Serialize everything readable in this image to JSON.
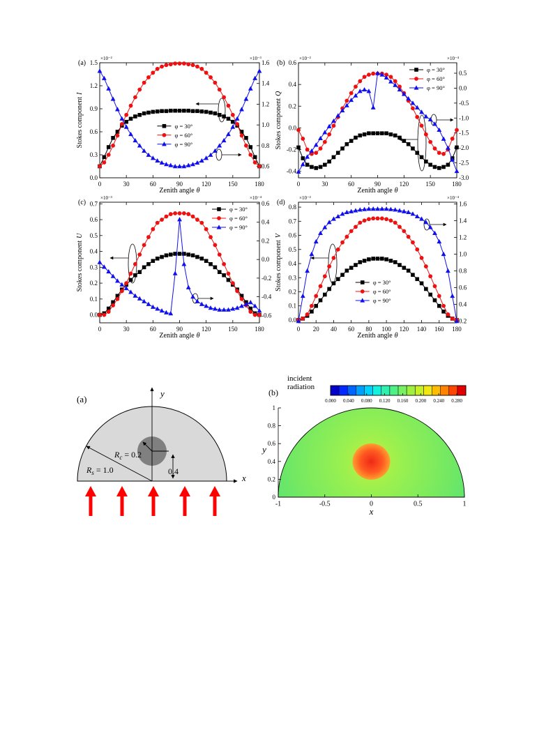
{
  "chart_data": [
    {
      "type": "line",
      "panel_label": "(a)",
      "y_label": {
        "text": "Stokes component",
        "symbol": "I"
      },
      "x_label": {
        "text": "Zenith angle",
        "symbol": "θ"
      },
      "y_multiplier": "×10⁻²",
      "y2_multiplier": "×10⁻³",
      "x": [
        0,
        5,
        10,
        15,
        20,
        25,
        30,
        35,
        40,
        45,
        50,
        55,
        60,
        65,
        70,
        75,
        80,
        85,
        90,
        95,
        100,
        105,
        110,
        115,
        120,
        125,
        130,
        135,
        140,
        145,
        150,
        155,
        160,
        165,
        170,
        175,
        180
      ],
      "xlim": [
        0,
        180
      ],
      "xticks": [
        0,
        30,
        60,
        90,
        120,
        150,
        180
      ],
      "ylim": [
        0,
        1.5
      ],
      "yticks": [
        {
          "value": 0,
          "label": "0.0"
        },
        0.3,
        0.6,
        0.9,
        1.2,
        1.5
      ],
      "y2lim": [
        0.49,
        1.6
      ],
      "y2ticks": [
        0.6,
        0.8,
        {
          "value": 1,
          "label": "1.0"
        },
        1.2,
        1.4,
        1.6
      ],
      "legend": "center",
      "series": [
        {
          "name": "φ = 30°",
          "color": "#000000",
          "marker": "square",
          "values": [
            0.15,
            0.27,
            0.4,
            0.52,
            0.6,
            0.68,
            0.73,
            0.77,
            0.8,
            0.82,
            0.84,
            0.85,
            0.86,
            0.865,
            0.87,
            0.87,
            0.875,
            0.875,
            0.875,
            0.875,
            0.875,
            0.87,
            0.87,
            0.865,
            0.86,
            0.85,
            0.84,
            0.82,
            0.8,
            0.77,
            0.73,
            0.68,
            0.6,
            0.52,
            0.4,
            0.27,
            0.15
          ]
        },
        {
          "name": "φ = 60°",
          "color": "#ee1111",
          "marker": "circle",
          "values": [
            0.15,
            0.2,
            0.3,
            0.42,
            0.55,
            0.7,
            0.82,
            0.94,
            1.05,
            1.15,
            1.24,
            1.31,
            1.37,
            1.42,
            1.45,
            1.47,
            1.48,
            1.49,
            1.49,
            1.49,
            1.48,
            1.47,
            1.45,
            1.42,
            1.37,
            1.31,
            1.24,
            1.15,
            1.05,
            0.94,
            0.82,
            0.7,
            0.55,
            0.42,
            0.3,
            0.2,
            0.15
          ]
        },
        {
          "name": "φ = 90°",
          "color": "#1010ee",
          "marker": "triangle",
          "axis": "y2",
          "values": [
            1.52,
            1.45,
            1.35,
            1.25,
            1.15,
            1.06,
            0.98,
            0.91,
            0.85,
            0.8,
            0.75,
            0.71,
            0.68,
            0.655,
            0.635,
            0.62,
            0.61,
            0.6,
            0.6,
            0.6,
            0.61,
            0.62,
            0.635,
            0.655,
            0.68,
            0.71,
            0.75,
            0.8,
            0.85,
            0.91,
            0.98,
            1.06,
            1.15,
            1.25,
            1.35,
            1.45,
            1.52
          ]
        }
      ]
    },
    {
      "type": "line",
      "panel_label": "(b)",
      "y_label": {
        "text": "Stokes component",
        "symbol": "Q"
      },
      "x_label": {
        "text": "Zenith angle",
        "symbol": "θ"
      },
      "y_multiplier": "×10⁻²",
      "y2_multiplier": "×10⁻⁴",
      "x": [
        0,
        5,
        10,
        15,
        20,
        25,
        30,
        35,
        40,
        45,
        50,
        55,
        60,
        65,
        70,
        75,
        80,
        85,
        90,
        95,
        100,
        105,
        110,
        115,
        120,
        125,
        130,
        135,
        140,
        145,
        150,
        155,
        160,
        165,
        170,
        175,
        180
      ],
      "xlim": [
        0,
        180
      ],
      "xticks": [
        0,
        30,
        60,
        90,
        120,
        150,
        180
      ],
      "ylim": [
        -0.46,
        0.6
      ],
      "yticks": [
        -0.4,
        -0.2,
        {
          "value": 0,
          "label": "0.0"
        },
        0.2,
        0.4,
        0.6
      ],
      "y2lim": [
        -3.0,
        0.85
      ],
      "y2ticks": [
        {
          "value": -3,
          "label": "-3.0"
        },
        -2.5,
        {
          "value": -2,
          "label": "-2.0"
        },
        -1.5,
        {
          "value": -1,
          "label": "-1.0"
        },
        -0.5,
        {
          "value": 0,
          "label": "0.0"
        },
        0.5
      ],
      "legend": "upper right",
      "series": [
        {
          "name": "φ = 30°",
          "color": "#000000",
          "marker": "square",
          "values": [
            -0.18,
            -0.28,
            -0.34,
            -0.36,
            -0.37,
            -0.36,
            -0.34,
            -0.31,
            -0.27,
            -0.23,
            -0.19,
            -0.15,
            -0.12,
            -0.09,
            -0.07,
            -0.06,
            -0.05,
            -0.05,
            -0.05,
            -0.05,
            -0.05,
            -0.06,
            -0.07,
            -0.09,
            -0.12,
            -0.15,
            -0.19,
            -0.23,
            -0.27,
            -0.31,
            -0.34,
            -0.36,
            -0.37,
            -0.36,
            -0.34,
            -0.28,
            -0.18
          ]
        },
        {
          "name": "φ = 60°",
          "color": "#ee1111",
          "marker": "circle",
          "values": [
            -0.02,
            -0.1,
            -0.2,
            -0.24,
            -0.23,
            -0.19,
            -0.13,
            -0.06,
            0.02,
            0.1,
            0.18,
            0.25,
            0.32,
            0.38,
            0.43,
            0.47,
            0.49,
            0.5,
            0.5,
            0.5,
            0.49,
            0.47,
            0.43,
            0.38,
            0.32,
            0.25,
            0.18,
            0.1,
            0.02,
            -0.06,
            -0.13,
            -0.19,
            -0.23,
            -0.24,
            -0.2,
            -0.1,
            -0.02
          ]
        },
        {
          "name": "φ = 90°",
          "color": "#1010ee",
          "marker": "triangle",
          "axis": "y2",
          "values": [
            -2.8,
            -2.55,
            -2.3,
            -2.1,
            -1.9,
            -1.68,
            -1.48,
            -1.28,
            -1.1,
            -0.92,
            -0.75,
            -0.58,
            -0.4,
            -0.25,
            -0.1,
            -0.05,
            -0.1,
            -0.65,
            0.5,
            0.45,
            0.35,
            0.22,
            0.1,
            -0.05,
            -0.2,
            -0.35,
            -0.5,
            -0.65,
            -0.8,
            -0.95,
            -1.05,
            -1.2,
            -1.4,
            -1.7,
            -2.0,
            -2.4,
            -2.78
          ]
        }
      ]
    },
    {
      "type": "line",
      "panel_label": "(c)",
      "y_label": {
        "text": "Stokes component",
        "symbol": "U"
      },
      "x_label": {
        "text": "Zenith angle",
        "symbol": "θ"
      },
      "y_multiplier": "×10⁻³",
      "y2_multiplier": "×10⁻⁴",
      "x": [
        0,
        5,
        10,
        15,
        20,
        25,
        30,
        35,
        40,
        45,
        50,
        55,
        60,
        65,
        70,
        75,
        80,
        85,
        90,
        95,
        100,
        105,
        110,
        115,
        120,
        125,
        130,
        135,
        140,
        145,
        150,
        155,
        160,
        165,
        170,
        175,
        180
      ],
      "xlim": [
        0,
        180
      ],
      "xticks": [
        0,
        30,
        60,
        90,
        120,
        150,
        180
      ],
      "ylim": [
        -0.05,
        0.71
      ],
      "yticks": [
        {
          "value": 0,
          "label": "0.0"
        },
        0.1,
        0.2,
        0.3,
        0.4,
        0.5,
        0.6,
        0.7
      ],
      "y2lim": [
        -0.68,
        0.615
      ],
      "y2ticks": [
        -0.6,
        -0.4,
        -0.2,
        {
          "value": 0,
          "label": "0.0"
        },
        0.2,
        0.4,
        0.6
      ],
      "legend": "upper right",
      "series": [
        {
          "name": "φ = 30°",
          "color": "#000000",
          "marker": "square",
          "values": [
            0,
            0.01,
            0.04,
            0.08,
            0.12,
            0.16,
            0.19,
            0.22,
            0.25,
            0.27,
            0.3,
            0.32,
            0.34,
            0.355,
            0.365,
            0.375,
            0.38,
            0.385,
            0.385,
            0.385,
            0.38,
            0.375,
            0.365,
            0.355,
            0.34,
            0.32,
            0.3,
            0.27,
            0.25,
            0.22,
            0.19,
            0.16,
            0.12,
            0.08,
            0.04,
            0.01,
            0
          ]
        },
        {
          "name": "φ = 60°",
          "color": "#ee1111",
          "marker": "circle",
          "values": [
            0,
            0,
            0.02,
            0.06,
            0.1,
            0.15,
            0.2,
            0.26,
            0.32,
            0.38,
            0.44,
            0.49,
            0.54,
            0.58,
            0.6,
            0.62,
            0.635,
            0.64,
            0.64,
            0.64,
            0.635,
            0.62,
            0.6,
            0.58,
            0.54,
            0.49,
            0.44,
            0.38,
            0.32,
            0.26,
            0.2,
            0.15,
            0.1,
            0.06,
            0.02,
            0,
            0
          ]
        },
        {
          "name": "φ = 90°",
          "color": "#1010ee",
          "marker": "triangle",
          "axis": "y2",
          "values": [
            -0.03,
            -0.08,
            -0.13,
            -0.18,
            -0.23,
            -0.27,
            -0.31,
            -0.35,
            -0.39,
            -0.42,
            -0.45,
            -0.48,
            -0.51,
            -0.53,
            -0.55,
            -0.57,
            -0.58,
            -0.15,
            0.43,
            -0.05,
            -0.3,
            -0.4,
            -0.45,
            -0.48,
            -0.5,
            -0.52,
            -0.53,
            -0.54,
            -0.54,
            -0.54,
            -0.53,
            -0.52,
            -0.5,
            -0.48,
            -0.46,
            -0.5,
            -0.55
          ]
        }
      ]
    },
    {
      "type": "line",
      "panel_label": "(d)",
      "y_label": {
        "text": "Stokes component",
        "symbol": "V"
      },
      "x_label": {
        "text": "Zenith angle",
        "symbol": "θ"
      },
      "y_multiplier": "×10⁻²",
      "y2_multiplier": "×10⁻⁴",
      "x": [
        0,
        5,
        10,
        15,
        20,
        25,
        30,
        35,
        40,
        45,
        50,
        55,
        60,
        65,
        70,
        75,
        80,
        85,
        90,
        95,
        100,
        105,
        110,
        115,
        120,
        125,
        130,
        135,
        140,
        145,
        150,
        155,
        160,
        165,
        170,
        175,
        180
      ],
      "xlim": [
        0,
        180
      ],
      "xticks": [
        0,
        20,
        40,
        60,
        80,
        100,
        120,
        140,
        160,
        180
      ],
      "ylim": [
        -0.02,
        0.835
      ],
      "yticks": [
        {
          "value": 0,
          "label": "0.0"
        },
        0.1,
        0.2,
        0.3,
        0.4,
        0.5,
        0.6,
        0.7,
        0.8
      ],
      "y2lim": [
        0.18,
        1.62
      ],
      "y2ticks": [
        0.2,
        0.4,
        0.6,
        0.8,
        {
          "value": 1,
          "label": "1.0"
        },
        1.2,
        1.4,
        1.6
      ],
      "legend": "lower center",
      "series": [
        {
          "name": "φ = 30°",
          "color": "#000000",
          "marker": "square",
          "values": [
            0,
            0.01,
            0.03,
            0.06,
            0.1,
            0.14,
            0.18,
            0.22,
            0.26,
            0.29,
            0.32,
            0.35,
            0.37,
            0.39,
            0.41,
            0.42,
            0.43,
            0.435,
            0.435,
            0.435,
            0.43,
            0.42,
            0.41,
            0.39,
            0.37,
            0.35,
            0.32,
            0.29,
            0.26,
            0.22,
            0.18,
            0.14,
            0.1,
            0.06,
            0.03,
            0.01,
            0
          ]
        },
        {
          "name": "φ = 60°",
          "color": "#ee1111",
          "marker": "circle",
          "values": [
            0,
            0.01,
            0.04,
            0.1,
            0.17,
            0.24,
            0.31,
            0.38,
            0.44,
            0.5,
            0.55,
            0.59,
            0.63,
            0.66,
            0.69,
            0.705,
            0.715,
            0.72,
            0.72,
            0.72,
            0.715,
            0.705,
            0.69,
            0.66,
            0.63,
            0.59,
            0.55,
            0.5,
            0.44,
            0.38,
            0.31,
            0.24,
            0.17,
            0.1,
            0.04,
            0.01,
            0
          ]
        },
        {
          "name": "φ = 90°",
          "color": "#1010ee",
          "marker": "triangle",
          "axis": "y2",
          "values": [
            0.2,
            0.5,
            0.8,
            1.0,
            1.15,
            1.25,
            1.32,
            1.38,
            1.42,
            1.45,
            1.48,
            1.5,
            1.51,
            1.52,
            1.53,
            1.535,
            1.54,
            1.54,
            1.54,
            1.54,
            1.54,
            1.535,
            1.53,
            1.52,
            1.51,
            1.5,
            1.48,
            1.45,
            1.42,
            1.38,
            1.32,
            1.25,
            1.15,
            1.0,
            0.8,
            0.5,
            0.2
          ]
        }
      ]
    },
    {
      "type": "contour",
      "panel_label": "(b)",
      "x_label": "x",
      "y_label": "y",
      "xlim": [
        -1,
        1
      ],
      "xticks": [
        -1,
        -0.5,
        0,
        0.5,
        1
      ],
      "ylim": [
        0,
        1
      ],
      "yticks": [
        0,
        0.2,
        0.4,
        0.6,
        0.8,
        1
      ],
      "colorbar": {
        "title": [
          "incident",
          "radiation"
        ],
        "clim": [
          0,
          0.3
        ],
        "ticks": [
          {
            "value": 0,
            "label": "0.000"
          },
          {
            "value": 0.04,
            "label": "0.040"
          },
          {
            "value": 0.08,
            "label": "0.080"
          },
          {
            "value": 0.12,
            "label": "0.120"
          },
          {
            "value": 0.16,
            "label": "0.160"
          },
          {
            "value": 0.2,
            "label": "0.200"
          },
          {
            "value": 0.24,
            "label": "0.240"
          },
          {
            "value": 0.28,
            "label": "0.280"
          }
        ],
        "colors": [
          "#0000c8",
          "#0028ff",
          "#0064ff",
          "#00a0ff",
          "#00d2ff",
          "#14f0e0",
          "#30f0b0",
          "#50f088",
          "#78f064",
          "#a0f040",
          "#c8f028",
          "#f0e814",
          "#ffbc00",
          "#ff8200",
          "#ff4600",
          "#e00000"
        ]
      }
    }
  ],
  "diagram": {
    "label": "(a)",
    "x_axis": "x",
    "y_axis": "y",
    "inner_radius": {
      "symbol": "R",
      "subscript": "c",
      "text": "= 0.2"
    },
    "outer_radius": {
      "symbol": "R",
      "subscript": "s",
      "text": "= 1.0"
    },
    "offset": "0.4"
  }
}
